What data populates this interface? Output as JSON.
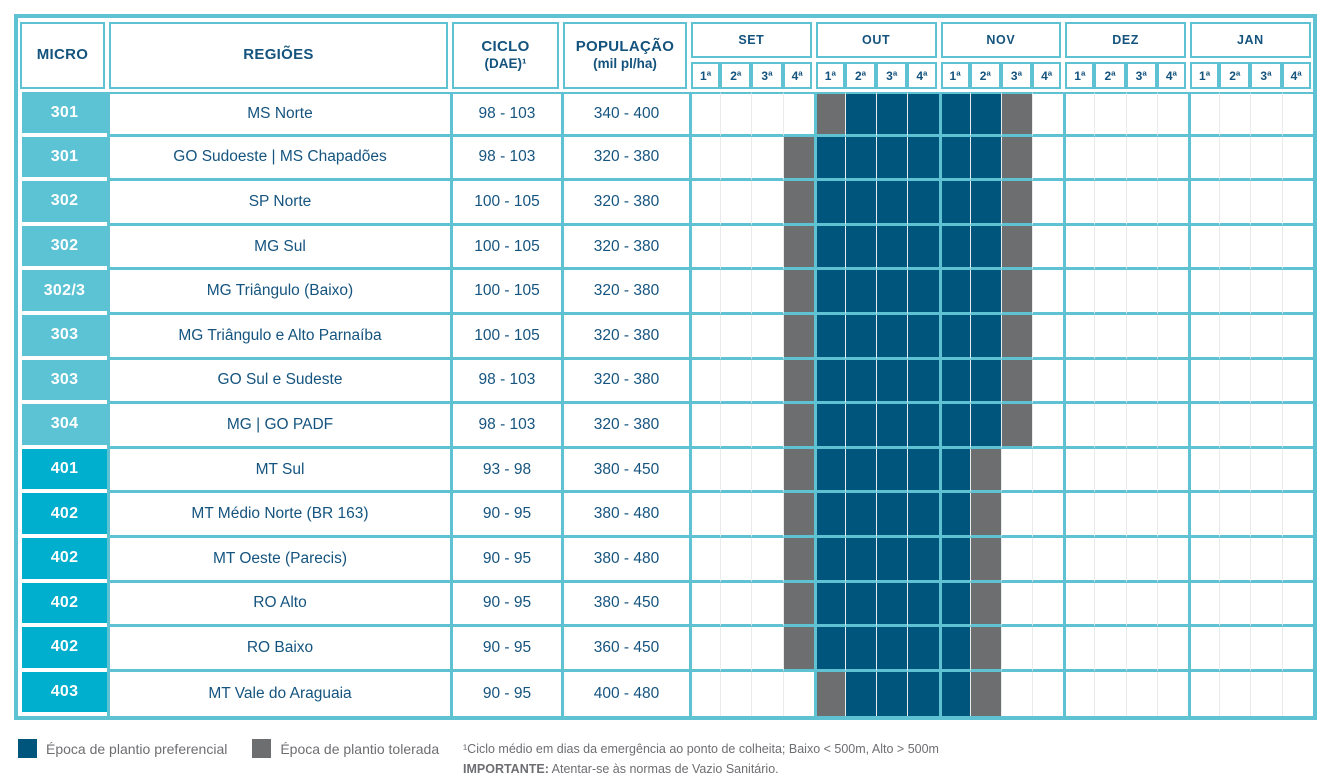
{
  "header": {
    "micro": "MICRO",
    "regioes": "REGIÕES",
    "ciclo_l1": "CICLO",
    "ciclo_l2": "(DAE)¹",
    "pop_l1": "POPULAÇÃO",
    "pop_l2": "(mil pl/ha)"
  },
  "chart_data": {
    "type": "table",
    "subtype": "planting-window-calendar",
    "months": [
      "SET",
      "OUT",
      "NOV",
      "DEZ",
      "JAN"
    ],
    "weeks": [
      "1ª",
      "2ª",
      "3ª",
      "4ª"
    ],
    "cell_codes": {
      "P": "Época de plantio preferencial",
      "T": "Época de plantio tolerada",
      "": "sem plantio"
    },
    "rows": [
      {
        "micro": "301",
        "tier": "300",
        "regiao": "MS Norte",
        "ciclo": "98 - 103",
        "populacao": "340 - 400",
        "cells": [
          "",
          "",
          "",
          "",
          "T",
          "P",
          "P",
          "P",
          "P",
          "P",
          "T",
          "",
          "",
          "",
          "",
          "",
          "",
          "",
          "",
          ""
        ]
      },
      {
        "micro": "301",
        "tier": "300",
        "regiao": "GO Sudoeste | MS Chapadões",
        "ciclo": "98 - 103",
        "populacao": "320 - 380",
        "cells": [
          "",
          "",
          "",
          "T",
          "P",
          "P",
          "P",
          "P",
          "P",
          "P",
          "T",
          "",
          "",
          "",
          "",
          "",
          "",
          "",
          "",
          ""
        ]
      },
      {
        "micro": "302",
        "tier": "300",
        "regiao": "SP Norte",
        "ciclo": "100 - 105",
        "populacao": "320 - 380",
        "cells": [
          "",
          "",
          "",
          "T",
          "P",
          "P",
          "P",
          "P",
          "P",
          "P",
          "T",
          "",
          "",
          "",
          "",
          "",
          "",
          "",
          "",
          ""
        ]
      },
      {
        "micro": "302",
        "tier": "300",
        "regiao": "MG Sul",
        "ciclo": "100 - 105",
        "populacao": "320 - 380",
        "cells": [
          "",
          "",
          "",
          "T",
          "P",
          "P",
          "P",
          "P",
          "P",
          "P",
          "T",
          "",
          "",
          "",
          "",
          "",
          "",
          "",
          "",
          ""
        ]
      },
      {
        "micro": "302/3",
        "tier": "300",
        "regiao": "MG Triângulo (Baixo)",
        "ciclo": "100 - 105",
        "populacao": "320 - 380",
        "cells": [
          "",
          "",
          "",
          "T",
          "P",
          "P",
          "P",
          "P",
          "P",
          "P",
          "T",
          "",
          "",
          "",
          "",
          "",
          "",
          "",
          "",
          ""
        ]
      },
      {
        "micro": "303",
        "tier": "300",
        "regiao": "MG Triângulo e Alto Parnaíba",
        "ciclo": "100 - 105",
        "populacao": "320 - 380",
        "cells": [
          "",
          "",
          "",
          "T",
          "P",
          "P",
          "P",
          "P",
          "P",
          "P",
          "T",
          "",
          "",
          "",
          "",
          "",
          "",
          "",
          "",
          ""
        ]
      },
      {
        "micro": "303",
        "tier": "300",
        "regiao": "GO Sul e Sudeste",
        "ciclo": "98 - 103",
        "populacao": "320 - 380",
        "cells": [
          "",
          "",
          "",
          "T",
          "P",
          "P",
          "P",
          "P",
          "P",
          "P",
          "T",
          "",
          "",
          "",
          "",
          "",
          "",
          "",
          "",
          ""
        ]
      },
      {
        "micro": "304",
        "tier": "300",
        "regiao": "MG | GO PADF",
        "ciclo": "98 - 103",
        "populacao": "320 - 380",
        "cells": [
          "",
          "",
          "",
          "T",
          "P",
          "P",
          "P",
          "P",
          "P",
          "P",
          "T",
          "",
          "",
          "",
          "",
          "",
          "",
          "",
          "",
          ""
        ]
      },
      {
        "micro": "401",
        "tier": "400",
        "regiao": "MT Sul",
        "ciclo": "93 - 98",
        "populacao": "380 - 450",
        "cells": [
          "",
          "",
          "",
          "T",
          "P",
          "P",
          "P",
          "P",
          "P",
          "T",
          "",
          "",
          "",
          "",
          "",
          "",
          "",
          "",
          "",
          ""
        ]
      },
      {
        "micro": "402",
        "tier": "400",
        "regiao": "MT Médio Norte (BR 163)",
        "ciclo": "90 - 95",
        "populacao": "380 - 480",
        "cells": [
          "",
          "",
          "",
          "T",
          "P",
          "P",
          "P",
          "P",
          "P",
          "T",
          "",
          "",
          "",
          "",
          "",
          "",
          "",
          "",
          "",
          ""
        ]
      },
      {
        "micro": "402",
        "tier": "400",
        "regiao": "MT Oeste (Parecis)",
        "ciclo": "90 - 95",
        "populacao": "380 - 480",
        "cells": [
          "",
          "",
          "",
          "T",
          "P",
          "P",
          "P",
          "P",
          "P",
          "T",
          "",
          "",
          "",
          "",
          "",
          "",
          "",
          "",
          "",
          ""
        ]
      },
      {
        "micro": "402",
        "tier": "400",
        "regiao": "RO Alto",
        "ciclo": "90 - 95",
        "populacao": "380 - 450",
        "cells": [
          "",
          "",
          "",
          "T",
          "P",
          "P",
          "P",
          "P",
          "P",
          "T",
          "",
          "",
          "",
          "",
          "",
          "",
          "",
          "",
          "",
          ""
        ]
      },
      {
        "micro": "402",
        "tier": "400",
        "regiao": "RO Baixo",
        "ciclo": "90 - 95",
        "populacao": "360 - 450",
        "cells": [
          "",
          "",
          "",
          "T",
          "P",
          "P",
          "P",
          "P",
          "P",
          "T",
          "",
          "",
          "",
          "",
          "",
          "",
          "",
          "",
          "",
          ""
        ]
      },
      {
        "micro": "403",
        "tier": "400",
        "regiao": "MT Vale do Araguaia",
        "ciclo": "90 - 95",
        "populacao": "400 - 480",
        "cells": [
          "",
          "",
          "",
          "",
          "T",
          "P",
          "P",
          "P",
          "P",
          "T",
          "",
          "",
          "",
          "",
          "",
          "",
          "",
          "",
          "",
          ""
        ]
      }
    ]
  },
  "legend": {
    "preferencial": "Época de plantio preferencial",
    "tolerada": "Época de plantio tolerada"
  },
  "footnotes": {
    "ciclo": "¹Ciclo médio em dias da emergência ao ponto de colheita; Baixo < 500m, Alto > 500m",
    "importante_label": "IMPORTANTE:",
    "importante_text": " Atentar-se às normas de Vazio Sanitário."
  },
  "colors": {
    "preferencial": "#00557c",
    "tolerada": "#6d6e70",
    "grid_teal": "#5fc2d3",
    "micro_300_bg": "#5cc3d4",
    "micro_400_bg": "#00aecd",
    "header_text": "#14537d",
    "body_text": "#15547f",
    "footnote_text": "#6d6e71"
  }
}
